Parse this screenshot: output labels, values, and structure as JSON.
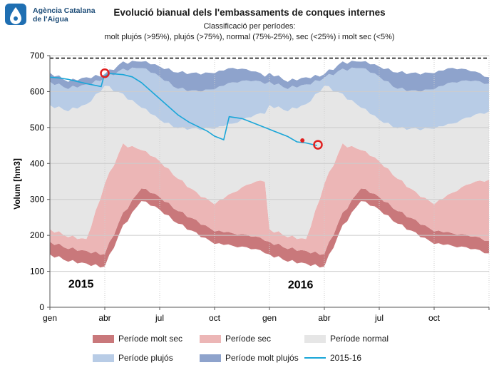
{
  "logo": {
    "name": "Agència Catalana\nde l'Aigua",
    "icon": "water-drop-logo-icon"
  },
  "chart_data": {
    "type": "area",
    "title": "Evolució bianual dels l'embassaments de conques internes",
    "subtitle": "Classificació per períodes:",
    "subtitle2": "molt plujós (>95%), plujós (>75%), normal (75%-25%), sec (<25%) i molt sec (<5%)",
    "ylabel": "Volum [hm3]",
    "xlabel": "",
    "ylim": [
      0,
      700
    ],
    "yticks": [
      0,
      100,
      200,
      300,
      400,
      500,
      600,
      700
    ],
    "xlim": [
      0,
      24
    ],
    "xticks": [
      {
        "x": 0,
        "label": "gen"
      },
      {
        "x": 3,
        "label": "abr"
      },
      {
        "x": 6,
        "label": "jul"
      },
      {
        "x": 9,
        "label": "oct"
      },
      {
        "x": 12,
        "label": "gen"
      },
      {
        "x": 15,
        "label": "abr"
      },
      {
        "x": 18,
        "label": "jul"
      },
      {
        "x": 21,
        "label": "oct"
      },
      {
        "x": 24,
        "label": ""
      }
    ],
    "capacity_line": 693,
    "year_labels": [
      {
        "x": 1.7,
        "y": 55,
        "label": "2015"
      },
      {
        "x": 13.7,
        "y": 53,
        "label": "2016"
      }
    ],
    "months_x": [
      0,
      1,
      2,
      3,
      4,
      5,
      6,
      7,
      8,
      9,
      10,
      11,
      12
    ],
    "p5": [
      180,
      165,
      152,
      150,
      260,
      335,
      305,
      270,
      240,
      215,
      205,
      198,
      185
    ],
    "p25": [
      215,
      198,
      185,
      345,
      452,
      442,
      405,
      360,
      318,
      290,
      318,
      345,
      355
    ],
    "p75": [
      560,
      548,
      560,
      618,
      590,
      560,
      520,
      500,
      495,
      500,
      510,
      530,
      545
    ],
    "p95": [
      625,
      610,
      615,
      640,
      660,
      670,
      640,
      610,
      600,
      610,
      625,
      630,
      622
    ],
    "max": [
      650,
      630,
      635,
      650,
      680,
      688,
      668,
      655,
      650,
      655,
      665,
      658,
      640
    ],
    "series": [
      {
        "name": "2015-16",
        "x": [
          0,
          0.5,
          1,
          2,
          2.8,
          2.95,
          3.3,
          4,
          4.5,
          5,
          6,
          7,
          7.6,
          8,
          8.6,
          9,
          9.3,
          9.5,
          9.8,
          10.5,
          11,
          12,
          13,
          13.5,
          14,
          14.6
        ],
        "y": [
          640,
          638,
          634,
          622,
          614,
          642,
          650,
          647,
          641,
          625,
          580,
          535,
          515,
          505,
          490,
          476,
          470,
          466,
          530,
          525,
          515,
          495,
          475,
          460,
          457,
          450
        ]
      }
    ],
    "markers": [
      {
        "x": 3.0,
        "y": 651,
        "kind": "circle"
      },
      {
        "x": 14.65,
        "y": 452,
        "kind": "circle"
      },
      {
        "x": 13.8,
        "y": 464,
        "kind": "dot"
      }
    ]
  },
  "legend": [
    {
      "label": "Període molt sec",
      "color": "#c9787b",
      "kind": "swatch"
    },
    {
      "label": "Període sec",
      "color": "#ecb6b6",
      "kind": "swatch"
    },
    {
      "label": "Període normal",
      "color": "#e6e6e6",
      "kind": "swatch"
    },
    {
      "label": "Període plujós",
      "color": "#b8cce6",
      "kind": "swatch"
    },
    {
      "label": "Període molt plujós",
      "color": "#8ea3cc",
      "kind": "swatch"
    },
    {
      "label": "2015-16",
      "color": "#1aa6d8",
      "kind": "line"
    }
  ],
  "colors": {
    "molt_sec": "#c9787b",
    "sec": "#ecb6b6",
    "normal": "#e6e6e6",
    "plujos": "#b8cce6",
    "molt_plujos": "#8ea3cc",
    "line": "#1aa6d8",
    "marker": "#e02020"
  }
}
